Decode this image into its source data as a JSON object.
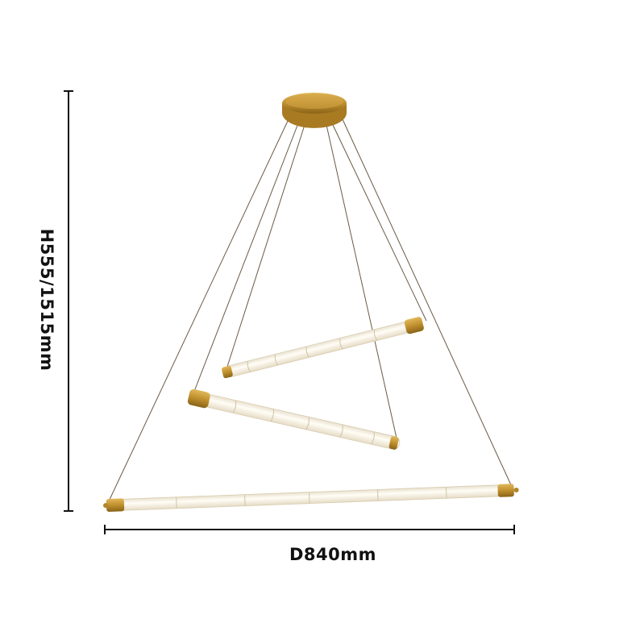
{
  "dimensions": {
    "height_label": "H555/1515mm",
    "diameter_label": "D840mm"
  },
  "colors": {
    "brass": "#c0902e",
    "tube": "#fbf6ea",
    "wire": "#6a5a45",
    "dimension_line": "#111111"
  }
}
